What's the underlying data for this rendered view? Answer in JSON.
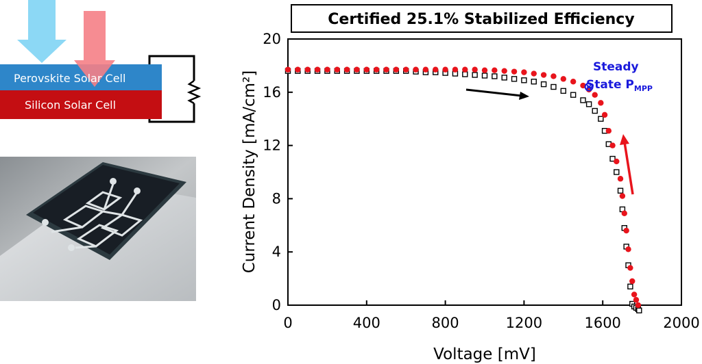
{
  "diagram": {
    "perovskite_label": "Perovskite Solar Cell",
    "silicon_label": "Silicon  Solar Cell",
    "colors": {
      "perovskite": "#2e86c9",
      "silicon": "#c40e12",
      "arrow_blue": "#8cd8f5",
      "arrow_red": "#f57f86"
    }
  },
  "photo": {
    "icon": "tandem-solar-cell-photo"
  },
  "chart_data": {
    "type": "scatter",
    "title": "Certified 25.1% Stabilized Efficiency",
    "xlabel": "Voltage [mV]",
    "ylabel": "Current Density [mA/cm²]",
    "xlim": [
      0,
      2000
    ],
    "ylim": [
      0,
      20
    ],
    "xticks": [
      0,
      400,
      800,
      1200,
      1600,
      2000
    ],
    "yticks": [
      0,
      4,
      8,
      12,
      16,
      20
    ],
    "grid": false,
    "annotation": {
      "line1": "Steady",
      "line2_main": "State P",
      "line2_sub": "MPP",
      "x": 1530,
      "y": 16.4
    },
    "series": [
      {
        "marker": "open-square",
        "color": "#000000",
        "x": [
          0,
          50,
          100,
          150,
          200,
          250,
          300,
          350,
          400,
          450,
          500,
          550,
          600,
          650,
          700,
          750,
          800,
          850,
          900,
          950,
          1000,
          1050,
          1100,
          1150,
          1200,
          1250,
          1300,
          1350,
          1400,
          1450,
          1500,
          1530,
          1560,
          1590,
          1610,
          1630,
          1650,
          1670,
          1690,
          1700,
          1710,
          1720,
          1730,
          1740,
          1750,
          1760,
          1770,
          1780,
          1785
        ],
        "y": [
          17.6,
          17.6,
          17.6,
          17.6,
          17.6,
          17.6,
          17.6,
          17.6,
          17.6,
          17.6,
          17.6,
          17.6,
          17.6,
          17.55,
          17.5,
          17.5,
          17.45,
          17.4,
          17.35,
          17.3,
          17.25,
          17.2,
          17.1,
          17.0,
          16.9,
          16.8,
          16.6,
          16.4,
          16.1,
          15.8,
          15.4,
          15.1,
          14.6,
          14.0,
          13.1,
          12.1,
          11.0,
          10.0,
          8.6,
          7.2,
          5.8,
          4.4,
          3.0,
          1.4,
          0.1,
          -0.1,
          -0.2,
          -0.3,
          -0.4
        ]
      },
      {
        "marker": "filled-circle",
        "color": "#e8141c",
        "x": [
          0,
          50,
          100,
          150,
          200,
          250,
          300,
          350,
          400,
          450,
          500,
          550,
          600,
          650,
          700,
          750,
          800,
          850,
          900,
          950,
          1000,
          1050,
          1100,
          1150,
          1200,
          1250,
          1300,
          1350,
          1400,
          1450,
          1500,
          1530,
          1560,
          1590,
          1610,
          1630,
          1650,
          1670,
          1690,
          1700,
          1710,
          1720,
          1730,
          1740,
          1750,
          1760,
          1770,
          1780
        ],
        "y": [
          17.7,
          17.7,
          17.7,
          17.7,
          17.7,
          17.7,
          17.7,
          17.7,
          17.7,
          17.7,
          17.7,
          17.7,
          17.7,
          17.7,
          17.7,
          17.7,
          17.7,
          17.7,
          17.7,
          17.7,
          17.65,
          17.65,
          17.6,
          17.55,
          17.5,
          17.4,
          17.3,
          17.2,
          17.0,
          16.8,
          16.5,
          16.2,
          15.8,
          15.2,
          14.3,
          13.1,
          12.0,
          10.8,
          9.5,
          8.2,
          6.9,
          5.6,
          4.2,
          2.8,
          1.8,
          0.8,
          0.4,
          0.0
        ]
      }
    ]
  }
}
